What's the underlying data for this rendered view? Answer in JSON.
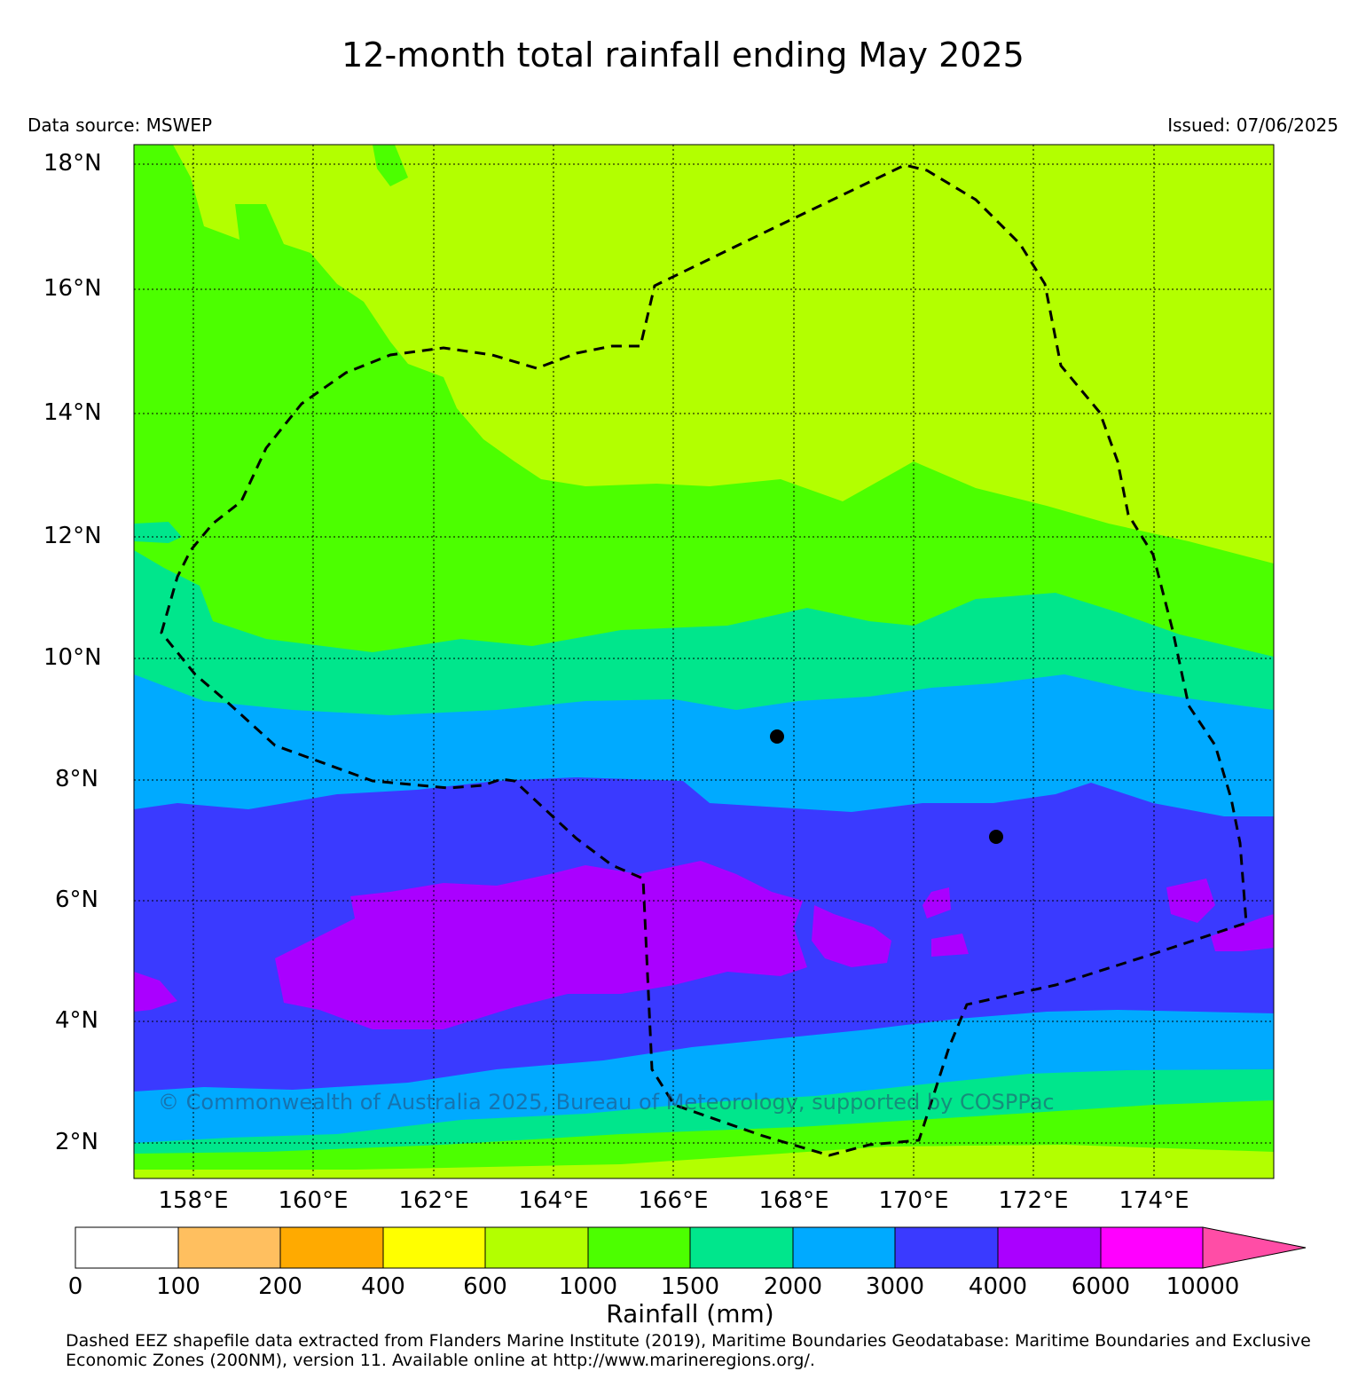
{
  "title": "12-month total rainfall ending May 2025",
  "data_source": "Data source: MSWEP",
  "issued": "Issued: 07/06/2025",
  "copyright": "© Commonwealth of Australia 2025, Bureau of Meteorology, supported by COSPPac",
  "map": {
    "lat_range": [
      1.4,
      18.3
    ],
    "lon_range": [
      157.0,
      176.0
    ],
    "lat_ticks": [
      "2°N",
      "4°N",
      "6°N",
      "8°N",
      "10°N",
      "12°N",
      "14°N",
      "16°N",
      "18°N"
    ],
    "lon_ticks": [
      "158°E",
      "160°E",
      "162°E",
      "164°E",
      "166°E",
      "168°E",
      "170°E",
      "172°E",
      "174°E"
    ],
    "eez_boundary": "dashed",
    "stations": [
      "station-1",
      "station-2"
    ]
  },
  "colorbar": {
    "label": "Rainfall (mm)",
    "ticks": [
      "0",
      "100",
      "200",
      "400",
      "600",
      "1000",
      "1500",
      "2000",
      "3000",
      "4000",
      "6000",
      "10000"
    ],
    "colors": [
      "#ffffff",
      "#ffbf5f",
      "#ffaa00",
      "#ffff00",
      "#b3ff00",
      "#4cff00",
      "#00e68c",
      "#00aaff",
      "#3a3aff",
      "#aa00ff",
      "#ff00ff",
      "#ff4da6"
    ]
  },
  "footnote": "Dashed EEZ shapefile data extracted from Flanders Marine Institute (2019), Maritime Boundaries Geodatabase: Maritime Boundaries and Exclusive Economic Zones (200NM), version 11. Available online at http://www.marineregions.org/."
}
